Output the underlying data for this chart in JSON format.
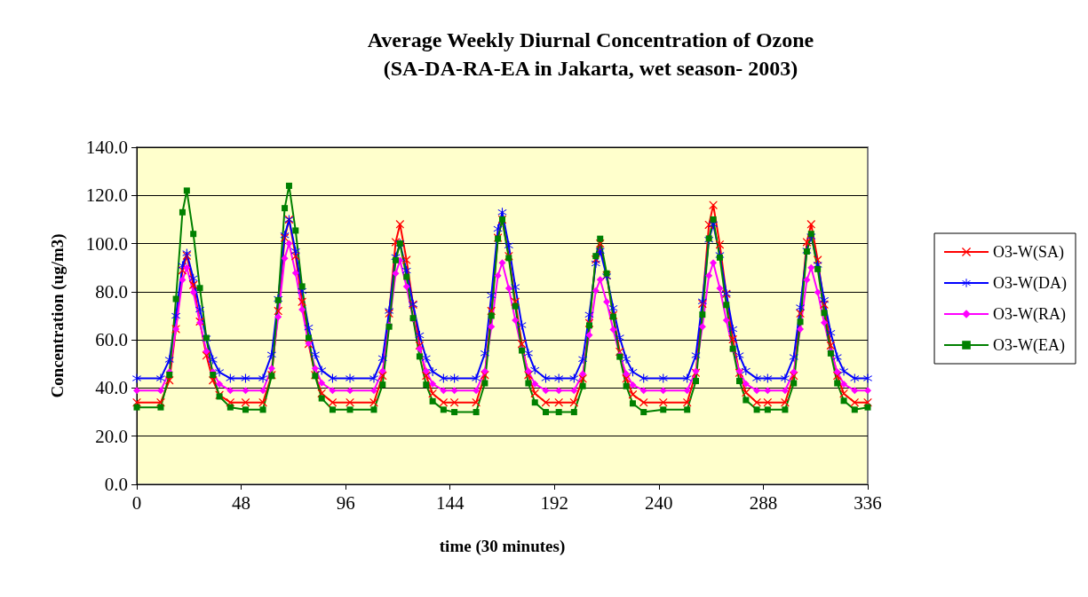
{
  "chart_data": {
    "type": "line",
    "title": "Average Weekly Diurnal Concentration of Ozone",
    "subtitle": "(SA-DA-RA-EA in Jakarta, wet season- 2003)",
    "xlabel": "time (30 minutes)",
    "ylabel": "Concentration (ug/m3)",
    "x": [
      0,
      11,
      15,
      18,
      21,
      23,
      26,
      29,
      32,
      35,
      38,
      43,
      50,
      58,
      62,
      65,
      68,
      70,
      73,
      76,
      79,
      82,
      85,
      90,
      98,
      109,
      113,
      116,
      119,
      121,
      124,
      127,
      130,
      133,
      136,
      141,
      146,
      156,
      160,
      163,
      166,
      168,
      171,
      174,
      177,
      180,
      183,
      188,
      194,
      201,
      205,
      208,
      211,
      213,
      216,
      219,
      222,
      225,
      228,
      233,
      242,
      253,
      257,
      260,
      263,
      265,
      268,
      271,
      274,
      277,
      280,
      285,
      290,
      298,
      302,
      305,
      308,
      310,
      313,
      316,
      319,
      322,
      325,
      330,
      336
    ],
    "series": [
      {
        "name": "O3-W(SA)",
        "color": "#ff0000",
        "marker": "cross",
        "values": [
          34,
          34,
          43.2,
          64.5,
          88.9,
          95,
          82.8,
          67.6,
          53.5,
          43.2,
          37.1,
          34,
          34,
          34,
          45.4,
          72,
          102.4,
          110,
          94.8,
          75.8,
          58.3,
          45.4,
          37.8,
          34,
          34,
          34,
          45.1,
          71,
          100.6,
          108,
          93.2,
          74.7,
          57.7,
          45.1,
          37.7,
          34,
          34,
          34,
          45.4,
          72,
          102.4,
          110,
          94.8,
          75.8,
          58.3,
          45.4,
          37.8,
          34,
          34,
          34,
          43.9,
          67,
          93.4,
          100,
          86.8,
          70.3,
          55.1,
          43.9,
          37.3,
          34,
          34,
          34,
          46.3,
          75,
          107.8,
          116,
          99.6,
          79.1,
          60.2,
          46.3,
          38.1,
          34,
          34,
          34,
          45.1,
          71,
          100.6,
          108,
          93.2,
          74.7,
          57.7,
          45.1,
          37.7,
          34,
          34
        ]
      },
      {
        "name": "O3-W(DA)",
        "color": "#0000ff",
        "marker": "star",
        "values": [
          44,
          44,
          51.8,
          70,
          90.8,
          96,
          85.6,
          72.6,
          60.6,
          51.8,
          46.6,
          44,
          44,
          44,
          53.9,
          77,
          103.4,
          110,
          96.8,
          80.3,
          65.1,
          53.9,
          47.3,
          44,
          44,
          44,
          52.4,
          72,
          94.4,
          100,
          88.8,
          74.8,
          61.9,
          52.4,
          46.8,
          44,
          44,
          44,
          54.4,
          78.5,
          106.1,
          113,
          99.2,
          82,
          66.1,
          54.4,
          47.5,
          44,
          44,
          44,
          52,
          70.5,
          91.7,
          97,
          86.4,
          73.2,
          61,
          52,
          46.7,
          44,
          44,
          44,
          53.6,
          76,
          101.6,
          108,
          95.2,
          79.2,
          64.5,
          53.6,
          47.2,
          44,
          44,
          44,
          52.9,
          73.5,
          97.1,
          103,
          91.2,
          76.5,
          62.9,
          52.9,
          47,
          44,
          44
        ]
      },
      {
        "name": "O3-W(RA)",
        "color": "#ff00ff",
        "marker": "diamond",
        "values": [
          39,
          39,
          46.7,
          64.5,
          84.9,
          90,
          79.8,
          67.1,
          55.3,
          46.7,
          41.6,
          39,
          39,
          39,
          48.2,
          69.5,
          93.9,
          100,
          87.8,
          72.6,
          58.5,
          48.2,
          42.1,
          39,
          39,
          39,
          47.1,
          66,
          87.6,
          93,
          82.2,
          68.7,
          56.3,
          47.1,
          41.7,
          39,
          39,
          39,
          47,
          65.5,
          86.7,
          92,
          81.4,
          68.2,
          56,
          47,
          41.7,
          39,
          39,
          39,
          45.9,
          62,
          80.4,
          85,
          75.8,
          64.3,
          53.7,
          45.9,
          41.3,
          39,
          39,
          39,
          47,
          65.5,
          86.7,
          92,
          81.4,
          68.2,
          56,
          47,
          41.7,
          39,
          39,
          39,
          46.7,
          64.5,
          84.9,
          90,
          79.8,
          67.1,
          55.3,
          46.7,
          41.6,
          39,
          39
        ]
      },
      {
        "name": "O3-W(EA)",
        "color": "#008000",
        "marker": "square",
        "values": [
          32,
          32,
          45.5,
          77,
          113,
          122,
          104,
          81.5,
          60.8,
          45.5,
          36.5,
          32,
          31,
          31,
          45,
          76.5,
          114.7,
          124,
          105.4,
          82.2,
          60.8,
          45,
          35.7,
          31,
          31,
          31,
          41.4,
          65.5,
          93.1,
          100,
          86.2,
          69,
          53.1,
          41.4,
          34.5,
          31,
          30,
          30,
          42,
          70,
          102,
          110,
          94,
          74,
          55.6,
          42,
          34,
          30,
          30,
          30,
          40.8,
          66,
          94.8,
          102,
          87.6,
          69.6,
          53,
          40.8,
          33.6,
          30,
          31,
          31,
          42.9,
          70.5,
          102.1,
          110,
          94.2,
          74.5,
          56.3,
          42.9,
          35,
          31,
          31,
          31,
          42,
          67.5,
          96.7,
          104,
          89.4,
          71.2,
          54.4,
          42,
          34.7,
          31,
          32
        ]
      }
    ],
    "xlim": [
      0,
      336
    ],
    "xticks": [
      0,
      48,
      96,
      144,
      192,
      240,
      288,
      336
    ],
    "ylim": [
      0,
      140
    ],
    "yticks": [
      {
        "value": 0,
        "label": "0.0"
      },
      {
        "value": 20,
        "label": "20.0"
      },
      {
        "value": 40,
        "label": "40.0"
      },
      {
        "value": 60,
        "label": "60.0"
      },
      {
        "value": 80,
        "label": "80.0"
      },
      {
        "value": 100,
        "label": "100.0"
      },
      {
        "value": 120,
        "label": "120.0"
      },
      {
        "value": 140,
        "label": "140.0"
      }
    ],
    "grid": "y",
    "legend": "right",
    "line_style": "solid"
  }
}
